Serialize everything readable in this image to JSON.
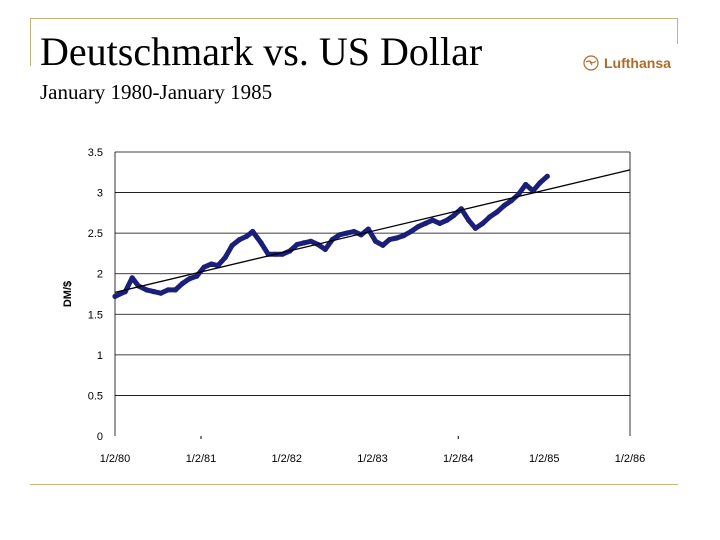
{
  "slide": {
    "title": "Deutschmark vs. US Dollar",
    "subtitle": "January 1980-January 1985",
    "logo_text": "Lufthansa",
    "accent_color": "#c8b47a",
    "logo_color": "#b06a24"
  },
  "chart_data": {
    "type": "line",
    "title": "",
    "xlabel": "",
    "ylabel": "DM/$",
    "ylim": [
      0,
      3.5
    ],
    "xlim": [
      "1/2/80",
      "1/2/86"
    ],
    "yticks": [
      "0",
      "0.5",
      "1",
      "1.5",
      "2",
      "2.5",
      "3",
      "3.5"
    ],
    "xticks": [
      "1/2/80",
      "1/2/81",
      "1/2/82",
      "1/2/83",
      "1/2/84",
      "1/2/85",
      "1/2/86"
    ],
    "grid": "horizontal",
    "series": [
      {
        "kind": "data",
        "color": "#1a1f7a",
        "x": [
          "1980-01-02",
          "1980-02-15",
          "1980-03-15",
          "1980-04-10",
          "1980-05-15",
          "1980-06-15",
          "1980-07-15",
          "1980-08-15",
          "1980-09-15",
          "1980-10-15",
          "1980-11-15",
          "1980-12-15",
          "1981-01-15",
          "1981-02-15",
          "1981-03-15",
          "1981-04-15",
          "1981-05-15",
          "1981-06-15",
          "1981-07-15",
          "1981-08-10",
          "1981-09-15",
          "1981-10-15",
          "1981-11-15",
          "1981-12-15",
          "1982-01-15",
          "1982-02-15",
          "1982-03-15",
          "1982-04-15",
          "1982-05-15",
          "1982-06-15",
          "1982-07-15",
          "1982-08-15",
          "1982-09-15",
          "1982-10-15",
          "1982-11-15",
          "1982-12-15",
          "1983-01-15",
          "1983-02-15",
          "1983-03-15",
          "1983-04-15",
          "1983-05-15",
          "1983-06-15",
          "1983-07-15",
          "1983-08-15",
          "1983-09-15",
          "1983-10-15",
          "1983-11-15",
          "1983-12-15",
          "1984-01-15",
          "1984-02-15",
          "1984-03-15",
          "1984-04-15",
          "1984-05-15",
          "1984-06-15",
          "1984-07-15",
          "1984-08-15",
          "1984-09-15",
          "1984-10-15",
          "1984-11-15",
          "1984-12-15",
          "1985-01-15"
        ],
        "y": [
          1.72,
          1.78,
          1.95,
          1.85,
          1.8,
          1.78,
          1.76,
          1.8,
          1.8,
          1.88,
          1.94,
          1.97,
          2.08,
          2.12,
          2.1,
          2.2,
          2.35,
          2.42,
          2.46,
          2.52,
          2.38,
          2.24,
          2.24,
          2.24,
          2.28,
          2.36,
          2.38,
          2.4,
          2.36,
          2.3,
          2.42,
          2.48,
          2.5,
          2.52,
          2.48,
          2.55,
          2.4,
          2.35,
          2.42,
          2.44,
          2.47,
          2.52,
          2.58,
          2.62,
          2.66,
          2.62,
          2.66,
          2.72,
          2.8,
          2.66,
          2.56,
          2.62,
          2.7,
          2.76,
          2.84,
          2.9,
          2.98,
          3.1,
          3.02,
          3.12,
          3.2
        ]
      },
      {
        "kind": "trend",
        "color": "#000000",
        "x": [
          "1980-01-02",
          "1986-01-02"
        ],
        "y": [
          1.77,
          3.28
        ]
      }
    ]
  }
}
